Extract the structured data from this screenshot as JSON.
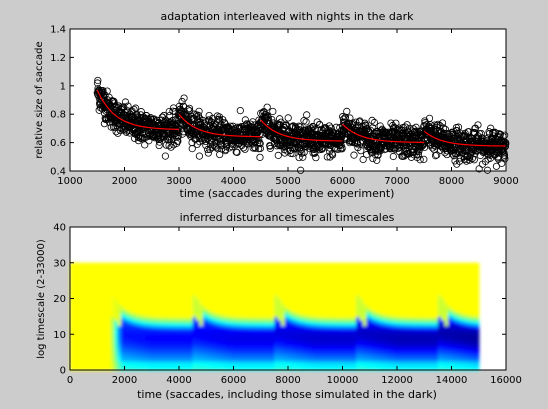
{
  "chart_data": [
    {
      "type": "scatter",
      "title": "adaptation interleaved with nights in the dark",
      "xlabel": "time (saccades during the experiment)",
      "ylabel": "relative size of saccade",
      "xlim": [
        1000,
        9000
      ],
      "ylim": [
        0.4,
        1.4
      ],
      "xticks": [
        1000,
        2000,
        3000,
        4000,
        5000,
        6000,
        7000,
        8000,
        9000
      ],
      "yticks": [
        0.4,
        0.6,
        0.8,
        1,
        1.2,
        1.4
      ],
      "grid": false,
      "marker": "open-circle",
      "marker_color": "#000000",
      "fit_color": "#ff0000",
      "noise_sd": 0.055,
      "sessions": [
        {
          "x_start": 1500,
          "x_end": 3000,
          "y_start": 0.97,
          "y_end": 0.69
        },
        {
          "x_start": 3000,
          "x_end": 4500,
          "y_start": 0.8,
          "y_end": 0.64
        },
        {
          "x_start": 4500,
          "x_end": 6000,
          "y_start": 0.76,
          "y_end": 0.61
        },
        {
          "x_start": 6000,
          "x_end": 7500,
          "y_start": 0.73,
          "y_end": 0.6
        },
        {
          "x_start": 7500,
          "x_end": 9000,
          "y_start": 0.68,
          "y_end": 0.575
        }
      ]
    },
    {
      "type": "heatmap",
      "title": "inferred disturbances for all timescales",
      "xlabel": "time (saccades, including those simulated in the dark)",
      "ylabel": "log timescale (2-33000)",
      "xlim": [
        0,
        16000
      ],
      "ylim": [
        0,
        40
      ],
      "xticks": [
        0,
        2000,
        4000,
        6000,
        8000,
        10000,
        12000,
        14000,
        16000
      ],
      "yticks": [
        0,
        10,
        20,
        30,
        40
      ],
      "data_xrange": [
        0,
        15000
      ],
      "data_yrange": [
        0,
        30
      ],
      "colormap": "jet",
      "background_color": "#80f080",
      "adaptation_start": 1500,
      "session_starts": [
        1500,
        4500,
        7500,
        10500,
        13500
      ]
    }
  ]
}
